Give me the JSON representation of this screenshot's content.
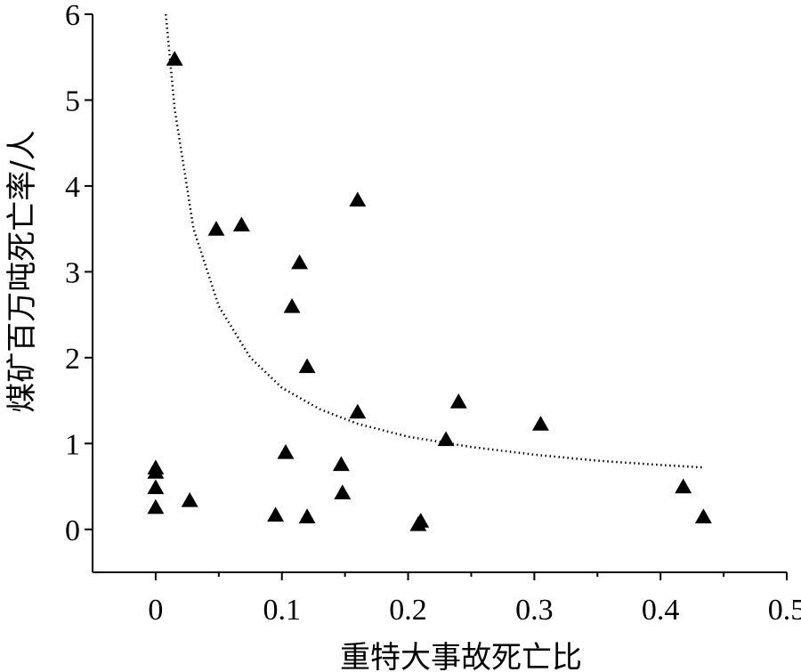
{
  "chart_data": {
    "type": "scatter",
    "xlabel": "重特大事故死亡比",
    "ylabel": "煤矿百万吨死亡率/人",
    "xlim": [
      -0.05,
      0.5
    ],
    "ylim": [
      -0.5,
      6
    ],
    "x_ticks": [
      0,
      0.1,
      0.2,
      0.3,
      0.4,
      0.5
    ],
    "x_tick_labels": [
      "0",
      "0.1",
      "0.2",
      "0.3",
      "0.4",
      "0.5"
    ],
    "y_ticks": [
      0,
      1,
      2,
      3,
      4,
      5,
      6
    ],
    "y_tick_labels": [
      "0",
      "1",
      "2",
      "3",
      "4",
      "5",
      "6"
    ],
    "grid": false,
    "marker": "triangle",
    "series": [
      {
        "points": [
          {
            "x": 0.015,
            "y": 5.48
          },
          {
            "x": 0.0,
            "y": 0.72
          },
          {
            "x": 0.0,
            "y": 0.67
          },
          {
            "x": 0.0,
            "y": 0.49
          },
          {
            "x": 0.0,
            "y": 0.26
          },
          {
            "x": 0.027,
            "y": 0.34
          },
          {
            "x": 0.048,
            "y": 3.5
          },
          {
            "x": 0.068,
            "y": 3.55
          },
          {
            "x": 0.095,
            "y": 0.17
          },
          {
            "x": 0.103,
            "y": 0.9
          },
          {
            "x": 0.108,
            "y": 2.6
          },
          {
            "x": 0.114,
            "y": 3.11
          },
          {
            "x": 0.12,
            "y": 1.9
          },
          {
            "x": 0.12,
            "y": 0.15
          },
          {
            "x": 0.147,
            "y": 0.76
          },
          {
            "x": 0.148,
            "y": 0.43
          },
          {
            "x": 0.16,
            "y": 3.84
          },
          {
            "x": 0.16,
            "y": 1.37
          },
          {
            "x": 0.208,
            "y": 0.06
          },
          {
            "x": 0.21,
            "y": 0.1
          },
          {
            "x": 0.23,
            "y": 1.05
          },
          {
            "x": 0.24,
            "y": 1.49
          },
          {
            "x": 0.305,
            "y": 1.23
          },
          {
            "x": 0.418,
            "y": 0.5
          },
          {
            "x": 0.434,
            "y": 0.15
          }
        ]
      }
    ],
    "trendline": {
      "style": "dotted",
      "x_range": [
        0.008,
        0.435
      ],
      "curve_points": [
        {
          "x": 0.008,
          "y": 6.0
        },
        {
          "x": 0.015,
          "y": 4.9
        },
        {
          "x": 0.03,
          "y": 3.5
        },
        {
          "x": 0.05,
          "y": 2.6
        },
        {
          "x": 0.075,
          "y": 2.0
        },
        {
          "x": 0.1,
          "y": 1.65
        },
        {
          "x": 0.13,
          "y": 1.4
        },
        {
          "x": 0.16,
          "y": 1.23
        },
        {
          "x": 0.2,
          "y": 1.08
        },
        {
          "x": 0.25,
          "y": 0.96
        },
        {
          "x": 0.3,
          "y": 0.87
        },
        {
          "x": 0.35,
          "y": 0.8
        },
        {
          "x": 0.4,
          "y": 0.75
        },
        {
          "x": 0.435,
          "y": 0.72
        }
      ]
    }
  }
}
